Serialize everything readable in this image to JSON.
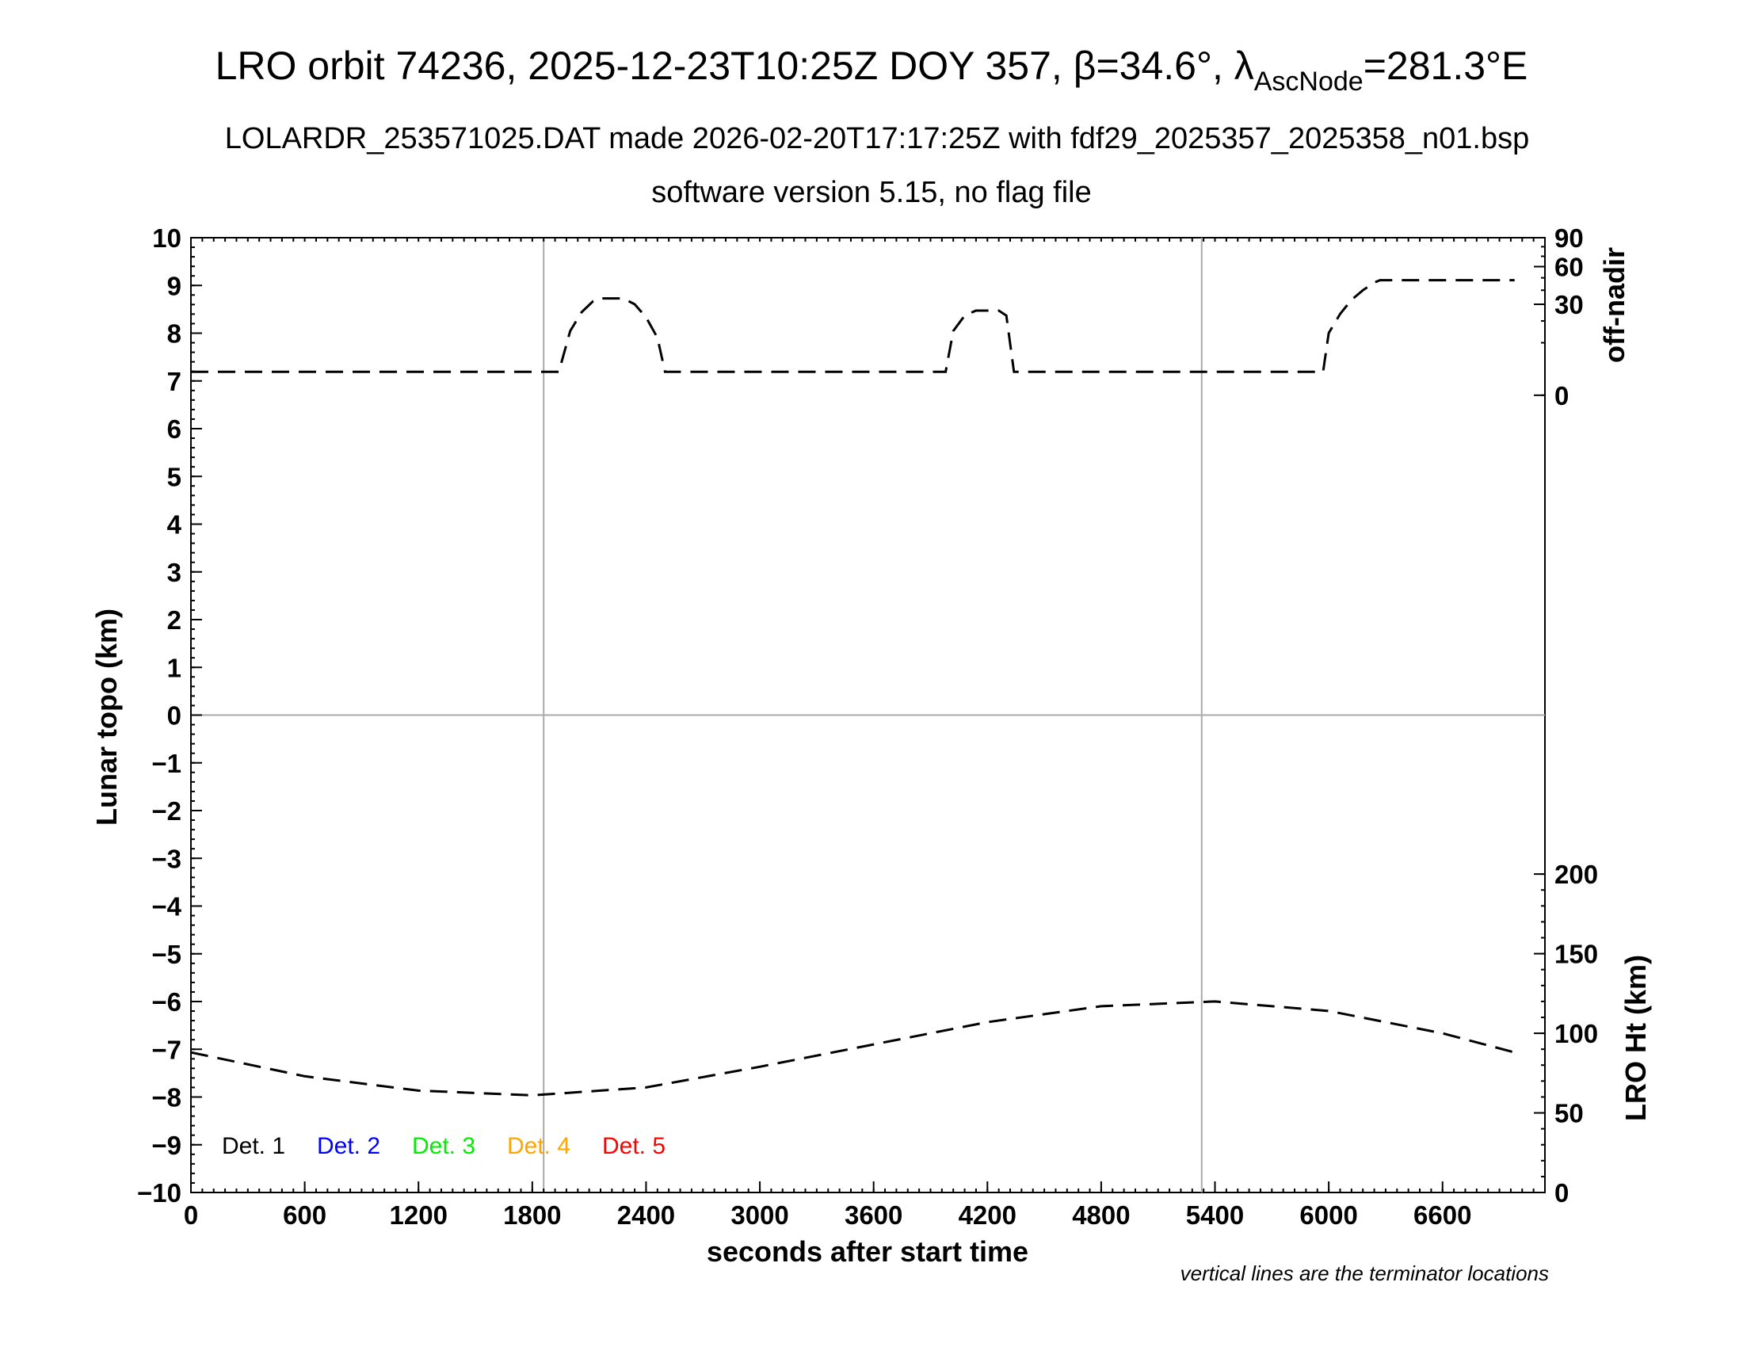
{
  "title": {
    "prefix": "LRO orbit 74236, 2025-12-23T10:25Z DOY 357, ",
    "beta_symbol": "β",
    "beta_value": "=34.6°, ",
    "lambda_symbol": "λ",
    "lambda_sub": "AscNode",
    "lambda_value": "=281.3°E"
  },
  "subtitle1": "LOLARDR_253571025.DAT made 2026-02-20T17:17:25Z with fdf29_2025357_2025358_n01.bsp",
  "subtitle2": "software version 5.15, no flag file",
  "note": "vertical lines are the terminator locations",
  "chart_data": {
    "type": "line",
    "xlabel": "seconds after start time",
    "ylabel_left": "Lunar topo (km)",
    "ylabel_right_top": "off-nadir",
    "ylabel_right_bottom": "LRO Ht (km)",
    "xlim": [
      0,
      7140
    ],
    "x_ticks": [
      0,
      600,
      1200,
      1800,
      2400,
      3000,
      3600,
      4200,
      4800,
      5400,
      6000,
      6600
    ],
    "ylim_left": [
      -10,
      10
    ],
    "y_ticks_left": [
      10,
      9,
      8,
      7,
      6,
      5,
      4,
      3,
      2,
      1,
      0,
      -1,
      -2,
      -3,
      -4,
      -5,
      -6,
      -7,
      -8,
      -9,
      -10
    ],
    "y_tick_labels_left": [
      "10",
      "9",
      "8",
      "7",
      "6",
      "5",
      "4",
      "3",
      "2",
      "1",
      "0",
      "−1",
      "−2",
      "−3",
      "−4",
      "−5",
      "−6",
      "−7",
      "−8",
      "−9",
      "−10"
    ],
    "off_nadir_ticks": [
      0,
      30,
      60,
      90
    ],
    "lro_ht_ticks": [
      0,
      50,
      100,
      150,
      200
    ],
    "terminator_x": [
      1860,
      5330
    ],
    "zero_line_y": 0,
    "legend": [
      {
        "label": "Det. 1",
        "color": "#000000"
      },
      {
        "label": "Det. 2",
        "color": "#0000ff"
      },
      {
        "label": "Det. 3",
        "color": "#00ee00"
      },
      {
        "label": "Det. 4",
        "color": "#ffa500"
      },
      {
        "label": "Det. 5",
        "color": "#ff0000"
      }
    ],
    "series": [
      {
        "axis": "off-nadir (deg)",
        "style": "dashed",
        "x": [
          0,
          600,
          1200,
          1800,
          1940,
          2000,
          2060,
          2120,
          2160,
          2200,
          2280,
          2340,
          2400,
          2460,
          2500,
          2600,
          3000,
          3600,
          3960,
          3980,
          4020,
          4080,
          4140,
          4200,
          4260,
          4300,
          4340,
          4800,
          5400,
          5940,
          5970,
          6000,
          6060,
          6120,
          6180,
          6240,
          6270,
          6600,
          6980
        ],
        "y": [
          2,
          2,
          2,
          2,
          2,
          15,
          25,
          32,
          34,
          34,
          34,
          30,
          22,
          12,
          2,
          2,
          2,
          2,
          2,
          2,
          15,
          23,
          26,
          26,
          26,
          23,
          2,
          2,
          2,
          2,
          2,
          14,
          24,
          33,
          40,
          46,
          48,
          48,
          48
        ]
      },
      {
        "axis": "LRO Ht (km)",
        "style": "dashed",
        "x": [
          0,
          600,
          1200,
          1800,
          2400,
          3000,
          3600,
          4200,
          4800,
          5400,
          6000,
          6600,
          6980
        ],
        "y": [
          88,
          73,
          64,
          61,
          66,
          79,
          93,
          107,
          117,
          120,
          114,
          100,
          88
        ]
      }
    ]
  }
}
